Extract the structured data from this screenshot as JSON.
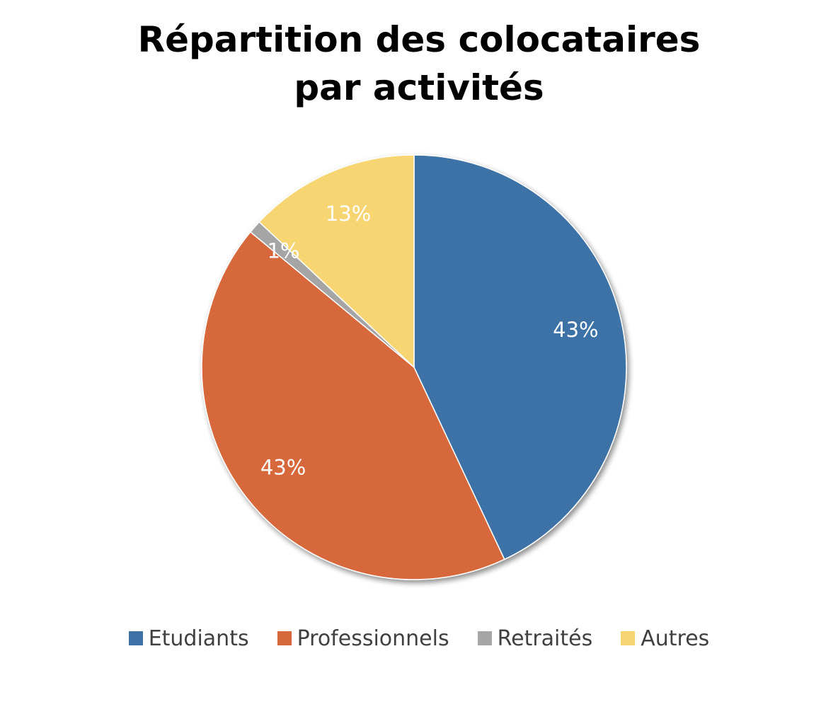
{
  "chart_data": {
    "type": "pie",
    "title_lines": [
      "Répartition des colocataires",
      "par activités"
    ],
    "start_angle_deg": 0,
    "direction": "clockwise",
    "legend_position": "bottom",
    "slices": [
      {
        "name": "Etudiants",
        "value": 43,
        "label": "43%",
        "color": "#3E72A6"
      },
      {
        "name": "Professionnels",
        "value": 43,
        "label": "43%",
        "color": "#D7683B"
      },
      {
        "name": "Retraités",
        "value": 1,
        "label": "1%",
        "color": "#A5A5A5"
      },
      {
        "name": "Autres",
        "value": 13,
        "label": "13%",
        "color": "#F7D573"
      }
    ]
  }
}
